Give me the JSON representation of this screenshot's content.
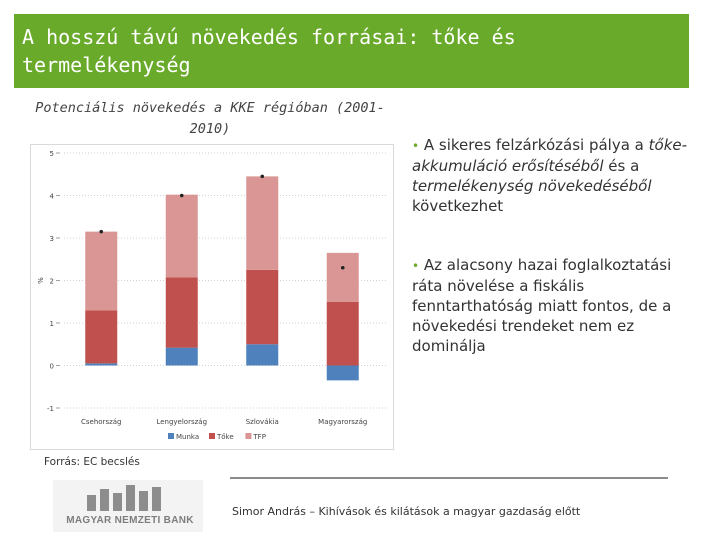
{
  "slide": {
    "title": "A hosszú távú növekedés forrásai: tőke és termelékenység",
    "source": "Forrás: EC becslés",
    "footer": "Simor András – Kihívások és kilátások a magyar gazdaság előtt",
    "logo_text": "MAGYAR NEMZETI BANK",
    "accent_color": "#6aaa2b"
  },
  "bullets": {
    "b1": {
      "marker": "•",
      "pre": "A sikeres felzárkózási pálya a ",
      "em1": "tőke-akkumuláció erősítéséből",
      "mid": " és a ",
      "em2": "termelékenység növekedéséből",
      "post": " következhet"
    },
    "b2": {
      "marker": "•",
      "text": "Az alacsony hazai foglalkoztatási ráta növelése a fiskális fenntarthatóság miatt fontos, de a növekedési trendeket nem ez dominálja"
    }
  },
  "chart_data": {
    "type": "bar",
    "stacked": true,
    "title": "Potenciális növekedés a KKE régióban (2001-2010)",
    "ylabel": "%",
    "ylim": [
      -1,
      5
    ],
    "yticks": [
      -1,
      0,
      1,
      2,
      3,
      4,
      5
    ],
    "categories": [
      "Csehország",
      "Lengyelország",
      "Szlovákia",
      "Magyarország"
    ],
    "series": [
      {
        "name": "Munka",
        "color": "#4f81bd",
        "values": [
          0.05,
          0.42,
          0.5,
          -0.35
        ]
      },
      {
        "name": "Tőke",
        "color": "#c0504d",
        "values": [
          1.25,
          1.65,
          1.75,
          1.5
        ]
      },
      {
        "name": "TFP",
        "color": "#d99694",
        "values": [
          1.85,
          1.95,
          2.2,
          1.15
        ]
      }
    ],
    "totals": [
      3.15,
      4.0,
      4.45,
      2.3
    ],
    "total_marker_color": "#222222",
    "legend": "bottom",
    "grid": true
  }
}
